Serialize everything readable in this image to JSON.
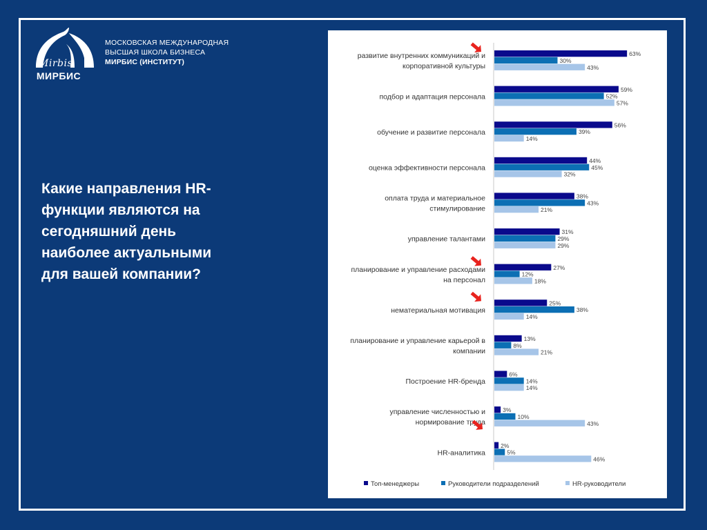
{
  "logo": {
    "script": "Mirbis",
    "name": "МИРБИС"
  },
  "school": {
    "line1": "МОСКОВСКАЯ МЕЖДУНАРОДНАЯ",
    "line2": "ВЫСШАЯ ШКОЛА БИЗНЕСА",
    "line3": "МИРБИС (ИНСТИТУТ)"
  },
  "question": {
    "lines": [
      "Какие направления HR-",
      "функции являются на",
      "сегодняшний день",
      "наиболее актуальными",
      "для вашей компании?"
    ]
  },
  "chart_data": {
    "type": "bar",
    "orientation": "horizontal",
    "categories": [
      [
        "развитие внутренних коммуникаций и",
        "корпоративной культуры"
      ],
      [
        "подбор и адаптация персонала"
      ],
      [
        "обучение и развитие персонала"
      ],
      [
        "оценка эффективности персонала"
      ],
      [
        "оплата труда и материальное",
        "стимулирование"
      ],
      [
        "управление талантами"
      ],
      [
        "планирование и управление расходами",
        "на персонал"
      ],
      [
        "нематериальная мотивация"
      ],
      [
        "планирование и управление карьерой в",
        "компании"
      ],
      [
        "Построение HR-бренда"
      ],
      [
        "управление численностью и",
        "нормирование труда"
      ],
      [
        "HR-аналитика"
      ]
    ],
    "series": [
      {
        "name": "Топ-менеджеры",
        "color": "#0a0a8c",
        "values": [
          63,
          59,
          56,
          44,
          38,
          31,
          27,
          25,
          13,
          6,
          3,
          2
        ]
      },
      {
        "name": "Руководители подразделений",
        "color": "#0c6fb4",
        "values": [
          30,
          52,
          39,
          45,
          43,
          29,
          12,
          38,
          8,
          14,
          10,
          5
        ]
      },
      {
        "name": "HR-руководители",
        "color": "#a6c5e8",
        "values": [
          43,
          57,
          14,
          32,
          21,
          29,
          18,
          14,
          21,
          14,
          43,
          46
        ]
      }
    ],
    "value_suffix": "%",
    "xlim": [
      0,
      70
    ],
    "legend_position": "bottom",
    "highlight_arrows": [
      0,
      6,
      7,
      10
    ],
    "arrow_color": "#e8231e"
  }
}
